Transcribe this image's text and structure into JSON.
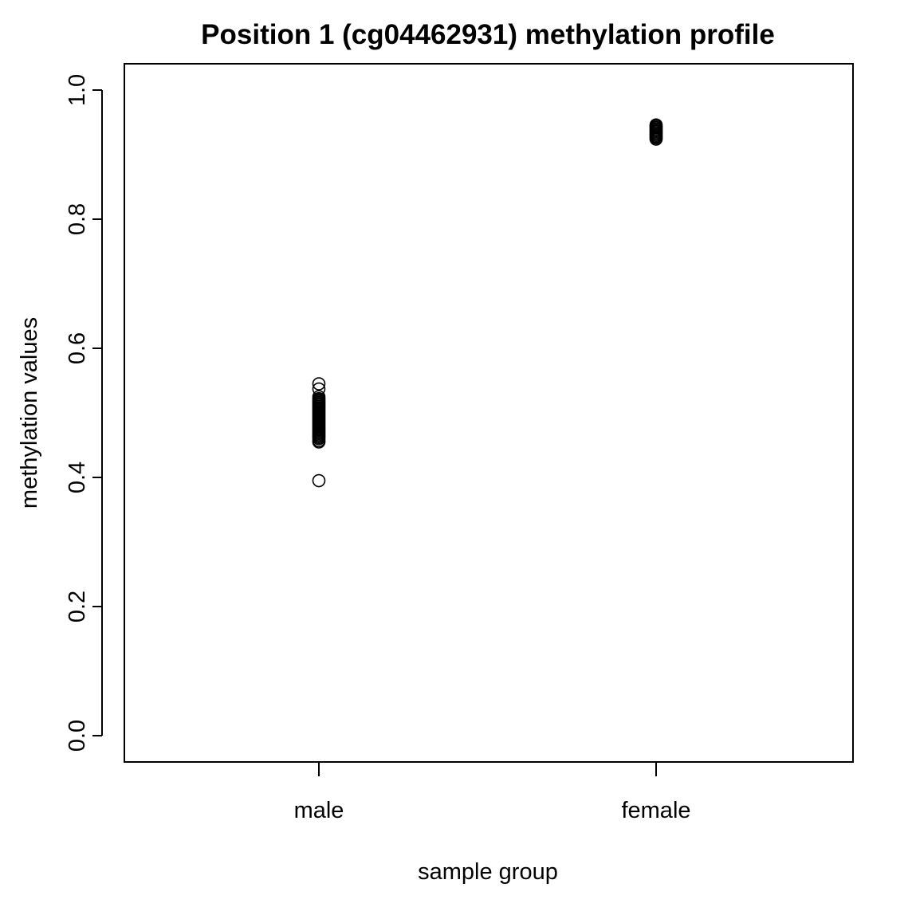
{
  "chart_data": {
    "type": "scatter",
    "title": "Position 1 (cg04462931) methylation profile",
    "xlabel": "sample group",
    "ylabel": "methylation values",
    "categories": [
      "male",
      "female"
    ],
    "ylim": [
      0.0,
      1.0
    ],
    "yticks": [
      0.0,
      0.2,
      0.4,
      0.6,
      0.8,
      1.0
    ],
    "ytick_labels": [
      "0.0",
      "0.2",
      "0.4",
      "0.6",
      "0.8",
      "1.0"
    ],
    "grid": false,
    "legend": "none",
    "marker": "open-circle",
    "series": [
      {
        "category": "male",
        "values": [
          0.545,
          0.537,
          0.525,
          0.522,
          0.52,
          0.518,
          0.516,
          0.514,
          0.512,
          0.51,
          0.508,
          0.506,
          0.504,
          0.502,
          0.5,
          0.498,
          0.496,
          0.494,
          0.492,
          0.49,
          0.488,
          0.486,
          0.484,
          0.482,
          0.48,
          0.478,
          0.476,
          0.474,
          0.472,
          0.47,
          0.468,
          0.466,
          0.464,
          0.462,
          0.46,
          0.457,
          0.455,
          0.395
        ]
      },
      {
        "category": "female",
        "values": [
          0.946,
          0.944,
          0.942,
          0.94,
          0.938,
          0.936,
          0.934,
          0.932,
          0.93,
          0.928,
          0.926,
          0.924
        ]
      }
    ]
  }
}
